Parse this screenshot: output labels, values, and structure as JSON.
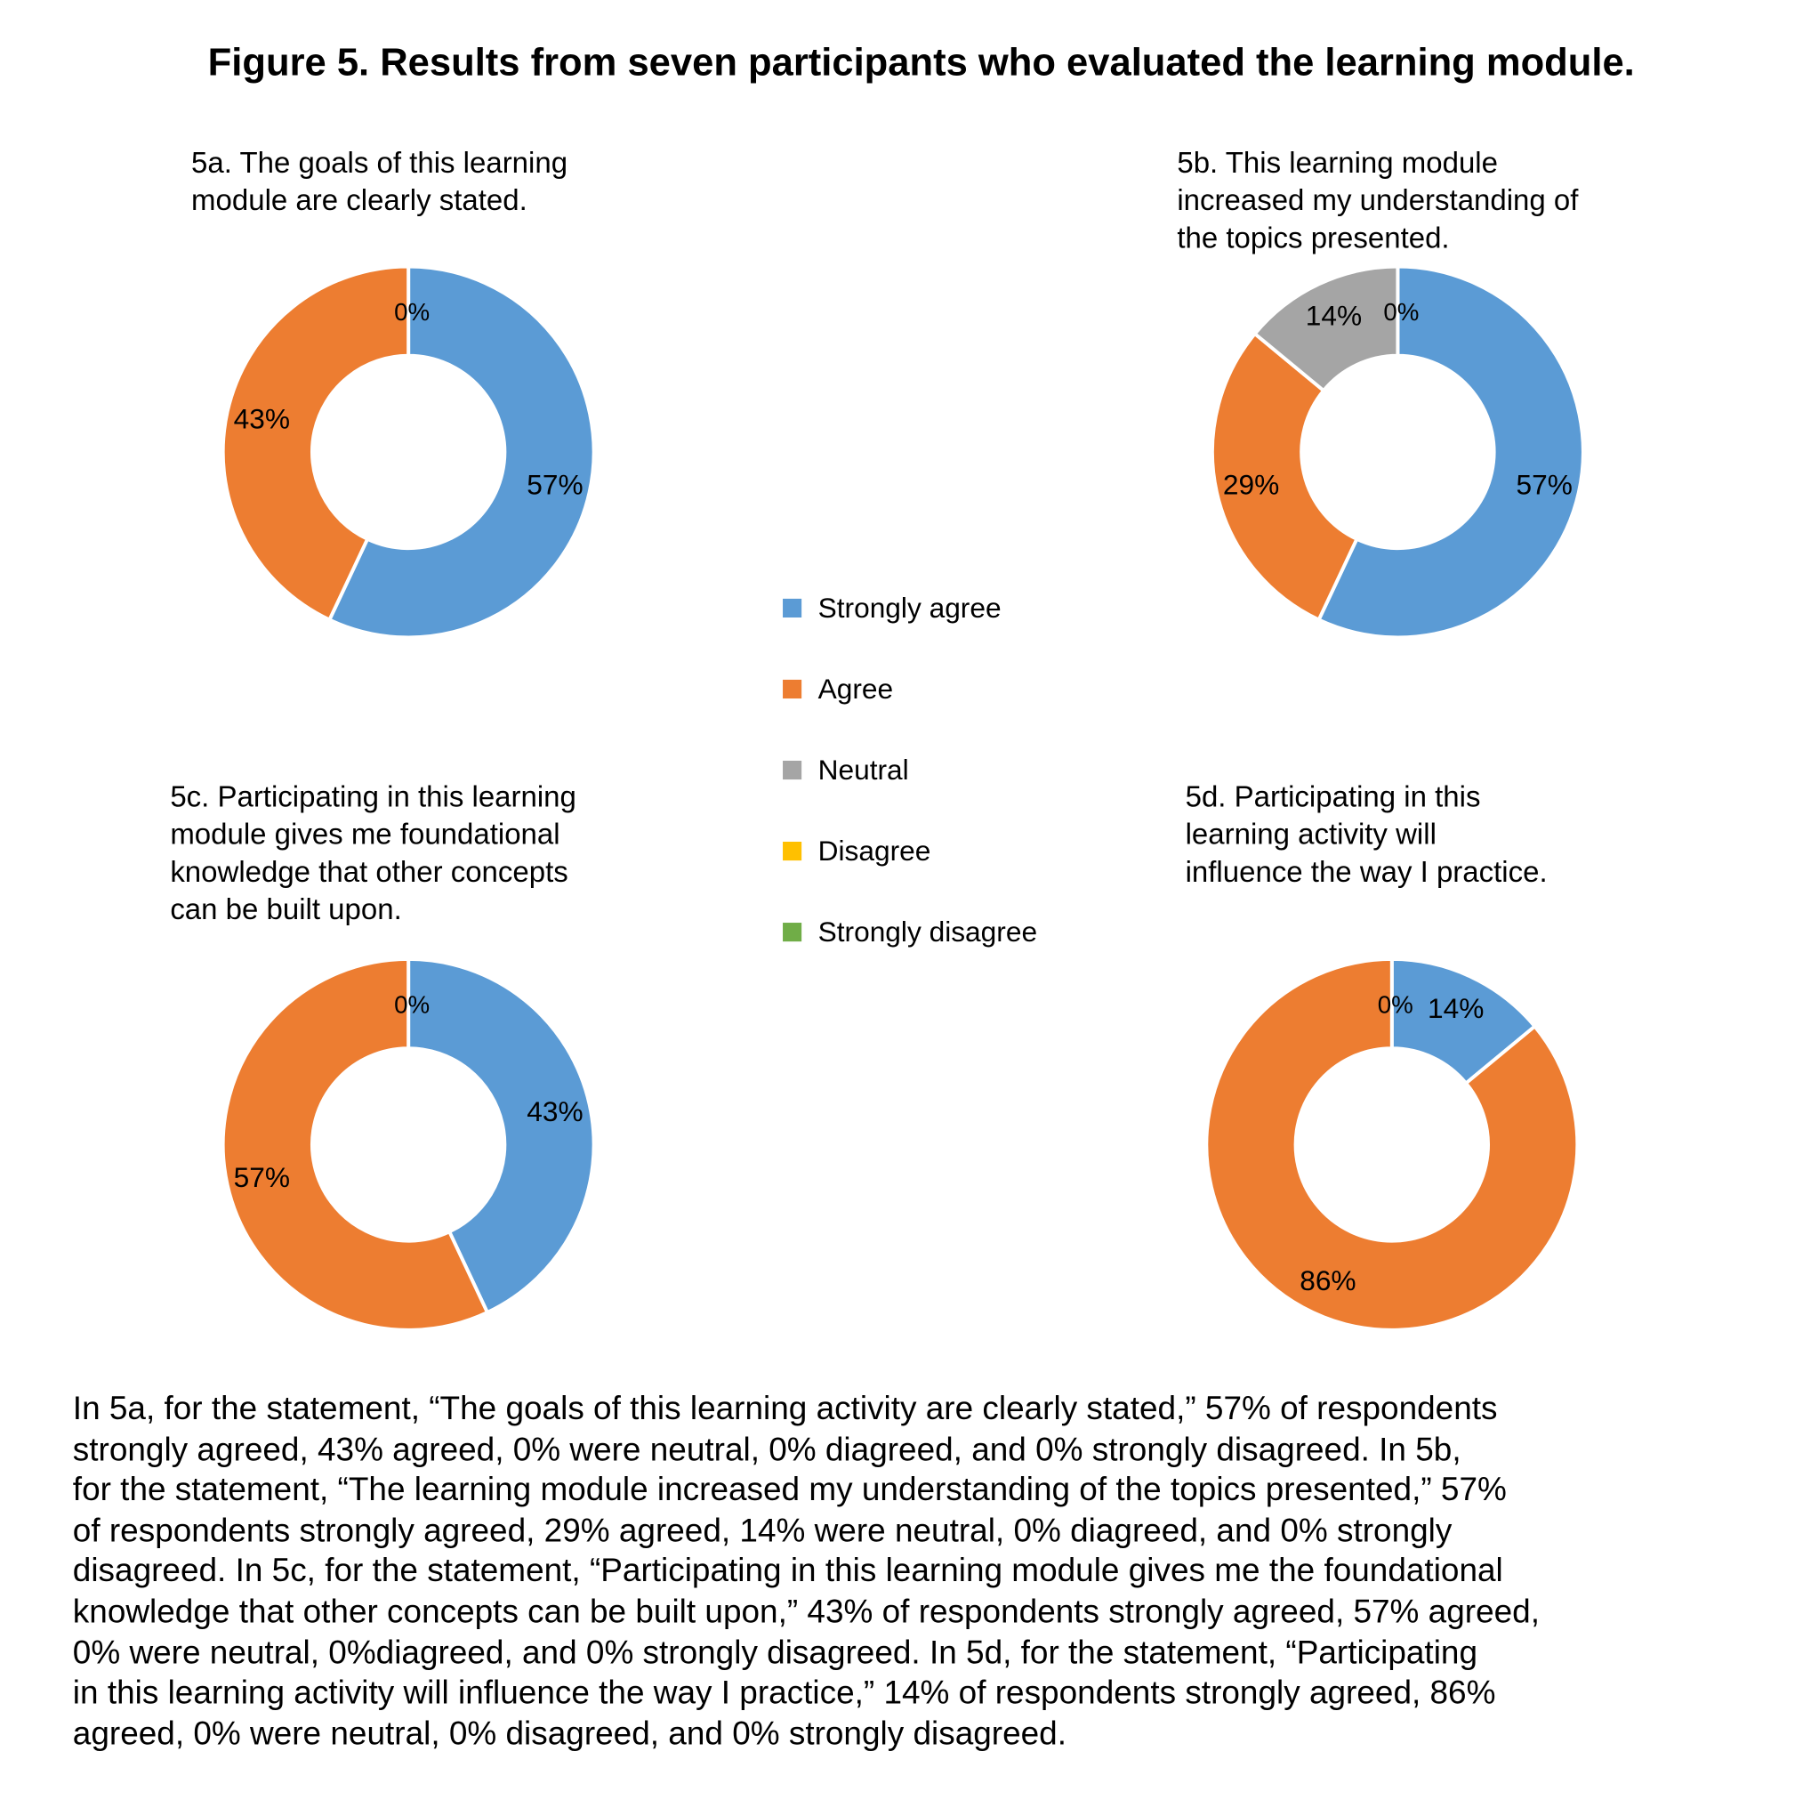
{
  "title": "Figure 5. Results from seven participants who evaluated the learning module.",
  "legend": {
    "items": [
      {
        "label": "Strongly agree",
        "color": "#5b9bd5"
      },
      {
        "label": "Agree",
        "color": "#ed7d31"
      },
      {
        "label": "Neutral",
        "color": "#a5a5a5"
      },
      {
        "label": "Disagree",
        "color": "#ffc000"
      },
      {
        "label": "Strongly disagree",
        "color": "#70ad47"
      }
    ]
  },
  "chart_data": [
    {
      "type": "pie",
      "id": "5a",
      "title_lines": [
        "5a. The goals of this learning",
        "module are clearly stated."
      ],
      "categories": [
        "Strongly agree",
        "Agree",
        "Neutral",
        "Disagree",
        "Strongly disagree"
      ],
      "values": [
        57,
        43,
        0,
        0,
        0
      ]
    },
    {
      "type": "pie",
      "id": "5b",
      "title_lines": [
        "5b. This learning module",
        "increased my understanding of",
        "the topics presented."
      ],
      "categories": [
        "Strongly agree",
        "Agree",
        "Neutral",
        "Disagree",
        "Strongly disagree"
      ],
      "values": [
        57,
        29,
        14,
        0,
        0
      ]
    },
    {
      "type": "pie",
      "id": "5c",
      "title_lines": [
        "5c. Participating in this learning",
        "module gives me foundational",
        "knowledge that other concepts",
        "can be built upon."
      ],
      "categories": [
        "Strongly agree",
        "Agree",
        "Neutral",
        "Disagree",
        "Strongly disagree"
      ],
      "values": [
        43,
        57,
        0,
        0,
        0
      ]
    },
    {
      "type": "pie",
      "id": "5d",
      "title_lines": [
        "5d. Participating in this",
        "learning activity will",
        "influence the way I practice."
      ],
      "categories": [
        "Strongly agree",
        "Agree",
        "Neutral",
        "Disagree",
        "Strongly disagree"
      ],
      "values": [
        14,
        86,
        0,
        0,
        0
      ]
    }
  ],
  "paragraph_lines": [
    "In 5a, for the statement, “The goals of this learning activity are clearly stated,” 57% of respondents",
    "strongly agreed, 43% agreed, 0% were neutral, 0% diagreed, and 0% strongly disagreed. In 5b,",
    "for the statement, “The learning module increased my understanding of the topics presented,” 57%",
    "of respondents strongly agreed, 29% agreed, 14% were neutral, 0% diagreed, and 0% strongly",
    "disagreed. In 5c, for the statement, “Participating in this learning module gives me the foundational",
    "knowledge that other concepts can be built upon,” 43% of respondents strongly agreed, 57% agreed,",
    "0% were neutral, 0%diagreed, and 0% strongly disagreed. In 5d, for the statement, “Participating",
    "in this learning activity will influence the way I practice,” 14% of respondents strongly agreed, 86%",
    "agreed, 0% were neutral, 0% disagreed, and 0% strongly disagreed."
  ]
}
